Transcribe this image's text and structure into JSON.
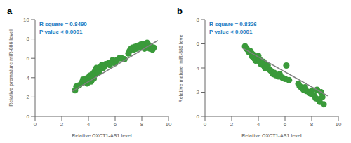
{
  "chart_data": [
    {
      "type": "scatter",
      "title": "a",
      "x_label": "Relative OXCT1-AS1 level",
      "y_label": "Relative premature miR-886 level",
      "xlim": [
        0,
        10
      ],
      "ylim": [
        0,
        10
      ],
      "xticks": [
        0,
        2,
        4,
        6,
        8,
        10
      ],
      "yticks": [
        0,
        2,
        4,
        6,
        8,
        10
      ],
      "grid": false,
      "annotations": [
        {
          "text": "R square = 0.8490",
          "color": "#1a7abf"
        },
        {
          "text": "P value < 0.0001",
          "color": "#1a7abf"
        }
      ],
      "series": [
        {
          "type": "scatter",
          "color": "#3a9a3a",
          "marker": "circle",
          "x": [
            3.0,
            3.1,
            3.3,
            3.5,
            3.6,
            3.8,
            3.9,
            4.0,
            4.0,
            4.1,
            4.1,
            4.2,
            4.2,
            4.3,
            4.3,
            4.4,
            4.4,
            4.5,
            4.5,
            4.6,
            4.7,
            4.8,
            4.9,
            5.0,
            5.1,
            5.2,
            5.3,
            5.5,
            5.6,
            5.7,
            5.8,
            6.0,
            6.1,
            6.3,
            6.5,
            6.7,
            7.0,
            7.1,
            7.2,
            7.3,
            7.4,
            7.5,
            7.6,
            7.7,
            7.8,
            7.9,
            8.0,
            8.1,
            8.2,
            8.3,
            8.4,
            8.5,
            8.6,
            8.7,
            8.8,
            8.9
          ],
          "values": [
            2.7,
            3.1,
            3.2,
            3.5,
            3.8,
            3.9,
            3.4,
            3.6,
            4.0,
            3.7,
            4.2,
            4.1,
            3.6,
            4.3,
            4.4,
            3.9,
            4.5,
            4.4,
            4.7,
            5.0,
            4.5,
            4.6,
            5.1,
            5.3,
            5.0,
            5.2,
            5.4,
            5.5,
            5.3,
            5.6,
            5.8,
            5.5,
            5.8,
            6.0,
            6.0,
            5.9,
            6.5,
            6.8,
            7.0,
            7.1,
            6.9,
            7.2,
            7.0,
            7.3,
            7.1,
            7.4,
            7.2,
            7.5,
            7.0,
            7.3,
            7.6,
            7.4,
            7.0,
            7.2,
            6.9,
            7.1
          ]
        },
        {
          "type": "line",
          "color": "#808080",
          "line_style": "solid",
          "x": [
            2.8,
            9.2
          ],
          "values": [
            2.596,
            7.844
          ]
        }
      ]
    },
    {
      "type": "scatter",
      "title": "b",
      "x_label": "Relative OXCT1-AS1 level",
      "y_label": "Relative mature miR-886 level",
      "xlim": [
        0,
        10
      ],
      "ylim": [
        0,
        8
      ],
      "xticks": [
        0,
        2,
        4,
        6,
        8,
        10
      ],
      "yticks": [
        0,
        2,
        4,
        6,
        8
      ],
      "grid": false,
      "annotations": [
        {
          "text": "R square = 0.8326",
          "color": "#1a7abf"
        },
        {
          "text": "P value < 0.0001",
          "color": "#1a7abf"
        }
      ],
      "series": [
        {
          "type": "scatter",
          "color": "#3a9a3a",
          "marker": "circle",
          "x": [
            3.0,
            3.1,
            3.2,
            3.3,
            3.4,
            3.5,
            3.5,
            3.6,
            3.6,
            3.7,
            3.8,
            3.9,
            4.0,
            4.0,
            4.1,
            4.1,
            4.2,
            4.2,
            4.3,
            4.4,
            4.4,
            4.5,
            4.5,
            4.6,
            4.7,
            4.8,
            4.9,
            5.0,
            5.1,
            5.2,
            5.3,
            5.5,
            5.6,
            5.8,
            6.0,
            6.1,
            6.3,
            7.0,
            7.1,
            7.2,
            7.3,
            7.4,
            7.5,
            7.6,
            7.8,
            7.9,
            8.0,
            8.1,
            8.2,
            8.3,
            8.4,
            8.5,
            8.6,
            8.7,
            8.8,
            8.9
          ],
          "values": [
            5.8,
            5.6,
            5.5,
            5.3,
            5.4,
            5.2,
            5.0,
            4.9,
            5.1,
            4.8,
            4.6,
            4.7,
            4.8,
            5.0,
            4.5,
            4.7,
            4.3,
            4.6,
            4.4,
            4.2,
            4.5,
            4.0,
            4.3,
            4.1,
            4.2,
            3.9,
            3.8,
            3.7,
            3.5,
            3.6,
            3.4,
            3.3,
            3.5,
            3.2,
            3.1,
            4.2,
            3.0,
            2.7,
            2.5,
            2.4,
            2.3,
            2.2,
            2.4,
            2.1,
            2.0,
            1.9,
            2.1,
            1.8,
            1.7,
            1.5,
            2.2,
            1.4,
            1.2,
            2.0,
            1.6,
            1.0
          ]
        },
        {
          "type": "line",
          "color": "#808080",
          "line_style": "solid",
          "x": [
            2.8,
            9.2
          ],
          "values": [
            5.664,
            1.696
          ]
        }
      ]
    }
  ]
}
